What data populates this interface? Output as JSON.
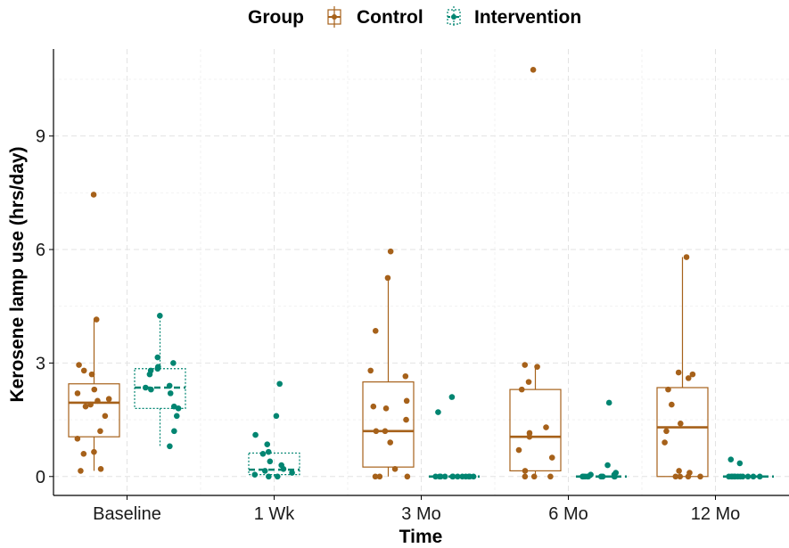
{
  "chart_data": {
    "type": "boxplot",
    "xlabel": "Time",
    "ylabel": "Kerosene lamp use (hrs/day)",
    "categories": [
      "Baseline",
      "1 Wk",
      "3 Mo",
      "6 Mo",
      "12 Mo"
    ],
    "y_ticks": [
      0,
      3,
      6,
      9
    ],
    "ylim": [
      -0.5,
      11.3
    ],
    "grid": true,
    "legend": {
      "title": "Group",
      "position": "top",
      "entries": [
        "Control",
        "Intervention"
      ]
    },
    "colors": {
      "Control": "#a6611a",
      "Intervention": "#018571"
    },
    "series": [
      {
        "name": "Control",
        "boxes": [
          {
            "category": "Baseline",
            "min": 0.15,
            "q1": 1.05,
            "median": 1.95,
            "q3": 2.45,
            "max": 4.15
          },
          {
            "category": "3 Mo",
            "min": 0.0,
            "q1": 0.25,
            "median": 1.2,
            "q3": 2.5,
            "max": 5.25
          },
          {
            "category": "6 Mo",
            "min": 0.0,
            "q1": 0.15,
            "median": 1.05,
            "q3": 2.3,
            "max": 2.9
          },
          {
            "category": "12 Mo",
            "min": 0.0,
            "q1": 0.0,
            "median": 1.3,
            "q3": 2.35,
            "max": 5.8
          }
        ],
        "points": [
          {
            "category": "Baseline",
            "values": [
              7.45,
              4.15,
              2.95,
              2.8,
              2.7,
              2.3,
              2.2,
              2.05,
              2.0,
              1.9,
              1.85,
              1.6,
              1.2,
              1.0,
              0.65,
              0.6,
              0.2,
              0.15
            ]
          },
          {
            "category": "3 Mo",
            "values": [
              5.95,
              5.25,
              3.85,
              2.8,
              2.65,
              2.0,
              1.85,
              1.8,
              1.5,
              1.2,
              1.2,
              0.9,
              0.2,
              0.0,
              0.0,
              0.0
            ]
          },
          {
            "category": "6 Mo",
            "values": [
              10.75,
              2.95,
              2.9,
              2.5,
              2.3,
              1.3,
              1.15,
              1.05,
              0.7,
              0.5,
              0.15,
              0.0,
              0.0,
              0.0
            ]
          },
          {
            "category": "12 Mo",
            "values": [
              5.8,
              2.75,
              2.7,
              2.6,
              2.3,
              1.9,
              1.4,
              1.2,
              0.9,
              0.15,
              0.1,
              0.0,
              0.0,
              0.0,
              0.0
            ]
          }
        ]
      },
      {
        "name": "Intervention",
        "boxes": [
          {
            "category": "Baseline",
            "min": 0.8,
            "q1": 1.8,
            "median": 2.35,
            "q3": 2.85,
            "max": 4.25
          },
          {
            "category": "1 Wk",
            "min": 0.0,
            "q1": 0.05,
            "median": 0.18,
            "q3": 0.62,
            "max": 0.62
          },
          {
            "category": "3 Mo",
            "min": 0.0,
            "q1": 0.0,
            "median": 0.0,
            "q3": 0.0,
            "max": 0.0
          },
          {
            "category": "6 Mo",
            "min": 0.0,
            "q1": 0.0,
            "median": 0.0,
            "q3": 0.0,
            "max": 0.0
          },
          {
            "category": "12 Mo",
            "min": 0.0,
            "q1": 0.0,
            "median": 0.0,
            "q3": 0.0,
            "max": 0.0
          }
        ],
        "points": [
          {
            "category": "Baseline",
            "values": [
              4.25,
              3.15,
              3.0,
              2.9,
              2.85,
              2.8,
              2.7,
              2.4,
              2.35,
              2.3,
              2.2,
              1.85,
              1.8,
              1.6,
              1.2,
              0.8
            ]
          },
          {
            "category": "1 Wk",
            "values": [
              2.45,
              1.6,
              1.1,
              0.85,
              0.65,
              0.6,
              0.4,
              0.3,
              0.2,
              0.15,
              0.1,
              0.05,
              0.0,
              0.0
            ]
          },
          {
            "category": "3 Mo",
            "values": [
              2.1,
              1.7,
              0.0,
              0.0,
              0.0,
              0.0,
              0.0,
              0.0,
              0.0,
              0.0,
              0.0,
              0.0,
              0.0,
              0.0
            ]
          },
          {
            "category": "6 Mo",
            "values": [
              1.95,
              0.3,
              0.1,
              0.05,
              0.05,
              0.0,
              0.0,
              0.0,
              0.0,
              0.0,
              0.0,
              0.0,
              0.0,
              0.0
            ]
          },
          {
            "category": "12 Mo",
            "values": [
              0.45,
              0.35,
              0.0,
              0.0,
              0.0,
              0.0,
              0.0,
              0.0,
              0.0,
              0.0,
              0.0,
              0.0,
              0.0
            ]
          }
        ]
      }
    ]
  }
}
